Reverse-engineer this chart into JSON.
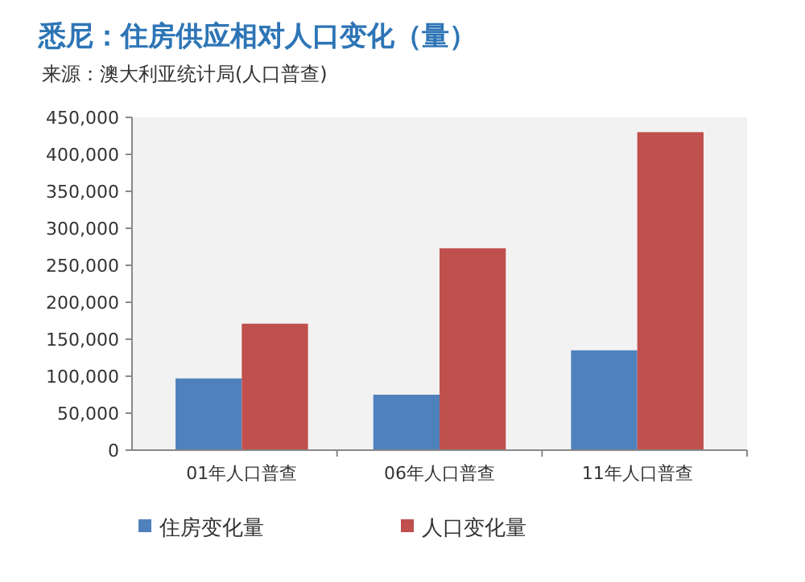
{
  "chart_data": {
    "type": "bar",
    "title": "悉尼：住房供应相对人口变化（量）",
    "subtitle": "来源：澳大利亚统计局(人口普查)",
    "categories": [
      "01年人口普查",
      "06年人口普查",
      "11年人口普查"
    ],
    "series": [
      {
        "name": "住房变化量",
        "color": "#4f81bd",
        "values": [
          97000,
          75000,
          135000
        ]
      },
      {
        "name": "人口变化量",
        "color": "#c0504d",
        "values": [
          171000,
          273000,
          430000
        ]
      }
    ],
    "ylim": [
      0,
      450000
    ],
    "yticks": [
      {
        "value": 0,
        "label": "0"
      },
      {
        "value": 50000,
        "label": "50,000"
      },
      {
        "value": 100000,
        "label": "100,000"
      },
      {
        "value": 150000,
        "label": "150,000"
      },
      {
        "value": 200000,
        "label": "200,000"
      },
      {
        "value": 250000,
        "label": "250,000"
      },
      {
        "value": 300000,
        "label": "300,000"
      },
      {
        "value": 350000,
        "label": "350,000"
      },
      {
        "value": 400000,
        "label": "400,000"
      },
      {
        "value": 450000,
        "label": "450,000"
      }
    ],
    "grid": false,
    "legend": "bottom"
  }
}
